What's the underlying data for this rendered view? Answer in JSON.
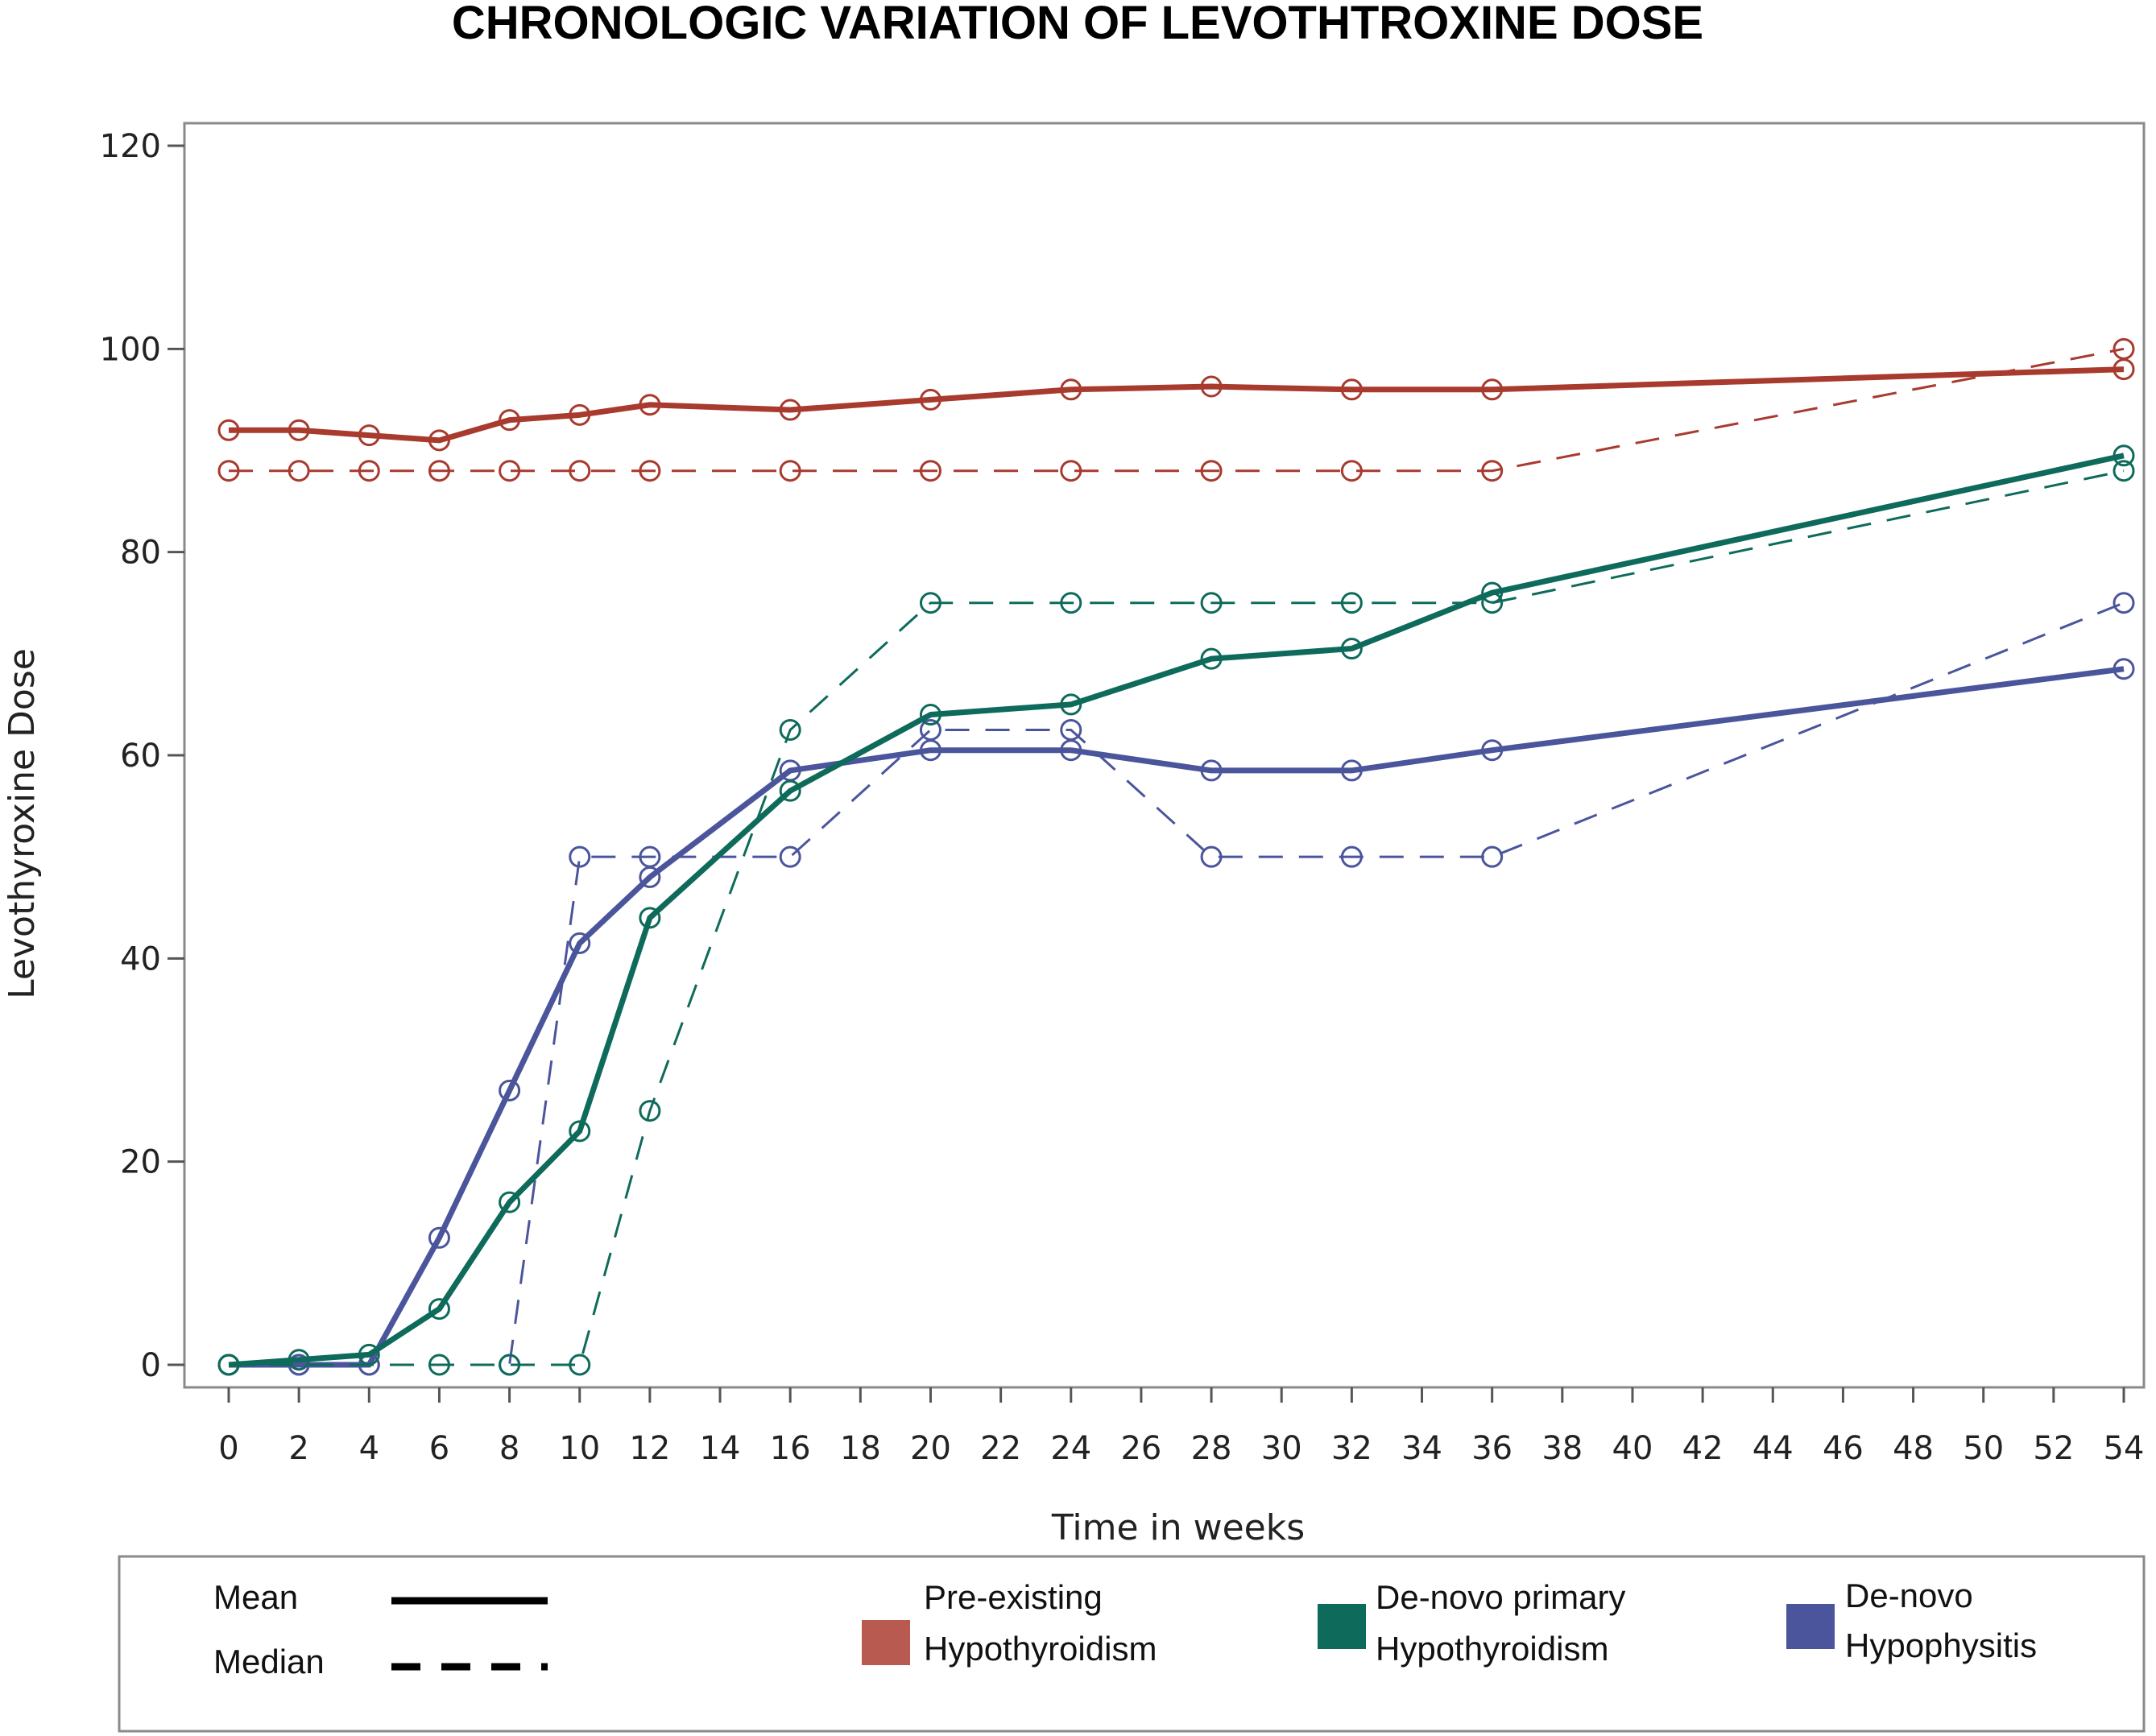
{
  "chart_data": {
    "type": "line",
    "title": "CHRONOLOGIC VARIATION OF LEVOTHTROXINE DOSE",
    "xlabel": "Time in weeks",
    "ylabel": "Levothyroxine Dose",
    "xlim": [
      0,
      54
    ],
    "ylim": [
      0,
      120
    ],
    "x_ticks": [
      0,
      2,
      4,
      6,
      8,
      10,
      12,
      14,
      16,
      18,
      20,
      22,
      24,
      26,
      28,
      30,
      32,
      34,
      36,
      38,
      40,
      42,
      44,
      46,
      48,
      50,
      52,
      54
    ],
    "y_ticks": [
      0,
      20,
      40,
      60,
      80,
      100,
      120
    ],
    "series": [
      {
        "name": "Pre-existing Hypothyroidism",
        "stat": "Mean",
        "color": "#a83a2e",
        "style": "solid",
        "x": [
          0,
          2,
          4,
          6,
          8,
          10,
          12,
          16,
          20,
          24,
          28,
          32,
          36,
          54
        ],
        "values": [
          92,
          92,
          91.5,
          91,
          93,
          93.5,
          94.5,
          94,
          95,
          96,
          96.3,
          96,
          96,
          98
        ]
      },
      {
        "name": "Pre-existing Hypothyroidism",
        "stat": "Median",
        "color": "#a83a2e",
        "style": "dashed",
        "x": [
          0,
          2,
          4,
          6,
          8,
          10,
          12,
          16,
          20,
          24,
          28,
          32,
          36,
          54
        ],
        "values": [
          88,
          88,
          88,
          88,
          88,
          88,
          88,
          88,
          88,
          88,
          88,
          88,
          88,
          100
        ]
      },
      {
        "name": "De-novo primary Hypothyroidism",
        "stat": "Mean",
        "color": "#0e6b5b",
        "style": "solid",
        "x": [
          0,
          2,
          4,
          6,
          8,
          10,
          12,
          16,
          20,
          24,
          28,
          32,
          36,
          54
        ],
        "values": [
          0,
          0.5,
          1,
          5.5,
          16,
          23,
          44,
          56.5,
          64,
          65,
          69.5,
          70.5,
          76,
          89.5
        ]
      },
      {
        "name": "De-novo primary Hypothyroidism",
        "stat": "Median",
        "color": "#0e6b5b",
        "style": "dashed",
        "x": [
          0,
          6,
          8,
          10,
          12,
          16,
          20,
          24,
          28,
          32,
          36,
          54
        ],
        "values": [
          0,
          0,
          0,
          0,
          25,
          62.5,
          75,
          75,
          75,
          75,
          75,
          88
        ]
      },
      {
        "name": "De-novo Hypophysitis",
        "stat": "Mean",
        "color": "#4a559c",
        "style": "solid",
        "x": [
          0,
          2,
          4,
          6,
          8,
          10,
          12,
          16,
          20,
          24,
          28,
          32,
          36,
          54
        ],
        "values": [
          0,
          0,
          0,
          12.5,
          27,
          41.5,
          48,
          58.5,
          60.5,
          60.5,
          58.5,
          58.5,
          60.5,
          68.5
        ]
      },
      {
        "name": "De-novo Hypophysitis",
        "stat": "Median",
        "color": "#4a559c",
        "style": "dashed",
        "x": [
          0,
          2,
          4,
          8,
          10,
          12,
          16,
          20,
          24,
          28,
          32,
          36,
          54
        ],
        "values": [
          0,
          0,
          0,
          0,
          50,
          50,
          50,
          62.5,
          62.5,
          50,
          50,
          50,
          75
        ]
      }
    ]
  },
  "legend": {
    "mean_label": "Mean",
    "median_label": "Median",
    "groups": [
      {
        "line1": "Pre-existing",
        "line2": "Hypothyroidism",
        "color": "#b85a4f"
      },
      {
        "line1": "De-novo primary",
        "line2": "Hypothyroidism",
        "color": "#0e6b5b"
      },
      {
        "line1": "De-novo",
        "line2": "Hypophysitis",
        "color": "#4a559c"
      }
    ]
  }
}
